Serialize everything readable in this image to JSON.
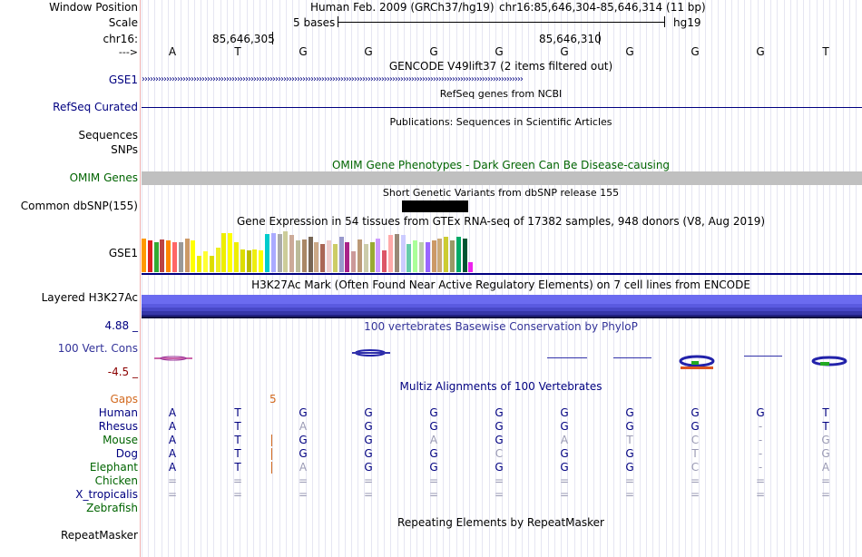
{
  "header": {
    "window_position_label": "Window Position",
    "scale_label": "Scale",
    "chrom_label": "chr16:",
    "arrow_label": "--->",
    "assembly_text": "Human Feb. 2009 (GRCh37/hg19)",
    "position_text": "chr16:85,646,304-85,646,314 (11 bp)",
    "scale_text": "5 bases",
    "scale_db": "hg19",
    "coord1": "85,646,305",
    "coord2": "85,646,310",
    "bases": [
      "A",
      "T",
      "G",
      "G",
      "G",
      "G",
      "G",
      "G",
      "G",
      "G",
      "T"
    ]
  },
  "tracks": {
    "gencode": {
      "title": "GENCODE V49lift37 (2 items filtered out)",
      "label": "GSE1"
    },
    "refseq": {
      "title": "RefSeq genes from NCBI",
      "label": "RefSeq Curated"
    },
    "publications": {
      "title": "Publications: Sequences in Scientific Articles",
      "label1": "Sequences",
      "label2": "SNPs"
    },
    "omim": {
      "title": "OMIM Gene Phenotypes - Dark Green Can Be Disease-causing",
      "label": "OMIM Genes"
    },
    "dbsnp": {
      "title": "Short Genetic Variants from dbSNP release 155",
      "label": "Common dbSNP(155)"
    },
    "gtex": {
      "title": "Gene Expression in 54 tissues from GTEx RNA-seq of 17382 samples, 948 donors (V8, Aug 2019)",
      "label": "GSE1"
    },
    "h3k27ac": {
      "title": "H3K27Ac Mark (Often Found Near Active Regulatory Elements) on 7 cell lines from ENCODE",
      "label": "Layered H3K27Ac"
    },
    "phylop": {
      "title": "100 vertebrates Basewise Conservation by PhyloP",
      "label": "100 Vert. Cons",
      "max": "4.88 _",
      "min": "-4.5 _"
    },
    "multiz": {
      "title": "Multiz Alignments of 100 Vertebrates",
      "gaps_label": "Gaps",
      "gap_value": "5"
    },
    "repeatmasker": {
      "title": "Repeating Elements by RepeatMasker",
      "label": "RepeatMasker"
    }
  },
  "alignment": {
    "species": [
      "Human",
      "Rhesus",
      "Mouse",
      "Dog",
      "Elephant",
      "Chicken",
      "X_tropicalis",
      "Zebrafish"
    ],
    "rows": [
      [
        "A",
        "T",
        "G",
        "G",
        "G",
        "G",
        "G",
        "G",
        "G",
        "G",
        "T"
      ],
      [
        "A",
        "T",
        "A",
        "G",
        "G",
        "G",
        "G",
        "G",
        "G",
        "-",
        "T"
      ],
      [
        "A",
        "T",
        "G",
        "G",
        "A",
        "G",
        "A",
        "T",
        "C",
        "-",
        "G"
      ],
      [
        "A",
        "T",
        "G",
        "G",
        "G",
        "C",
        "G",
        "G",
        "T",
        "-",
        "G"
      ],
      [
        "A",
        "T",
        "A",
        "G",
        "G",
        "G",
        "G",
        "G",
        "C",
        "-",
        "A"
      ],
      [
        "=",
        "=",
        "=",
        "=",
        "=",
        "=",
        "=",
        "=",
        "=",
        "=",
        "="
      ],
      [
        "=",
        "=",
        "=",
        "=",
        "=",
        "=",
        "=",
        "=",
        "=",
        "=",
        "="
      ],
      [
        "",
        "",
        "",
        "",
        "",
        "",
        "",
        "",
        "",
        "",
        ""
      ]
    ]
  },
  "gtex_values": [
    62,
    58,
    55,
    60,
    58,
    55,
    55,
    62,
    58,
    30,
    38,
    30,
    45,
    72,
    72,
    55,
    42,
    40,
    42,
    40,
    70,
    72,
    70,
    75,
    68,
    58,
    60,
    65,
    55,
    52,
    58,
    52,
    65,
    55,
    38,
    60,
    52,
    55,
    62,
    40,
    68,
    70,
    68,
    52,
    58,
    55,
    55,
    58,
    62,
    65,
    58,
    65,
    62,
    18
  ],
  "gtex_colors": [
    "#ff9900",
    "#dd2222",
    "#33aa33",
    "#bb4444",
    "#ff8800",
    "#ff6666",
    "#999999",
    "#cc9966",
    "#ffff00",
    "#eeee00",
    "#ffff33",
    "#dddd00",
    "#eeee22",
    "#eeee00",
    "#ffff00",
    "#eeee00",
    "#dddd00",
    "#bbbb00",
    "#eeee11",
    "#ffff00",
    "#00cccc",
    "#aaaaff",
    "#aaaaaa",
    "#cccc99",
    "#ccaa99",
    "#bbbb99",
    "#aa8866",
    "#776655",
    "#ccaa88",
    "#aa6655",
    "#eecccc",
    "#cccc66",
    "#9999cc",
    "#aa2288",
    "#cc9999",
    "#bb9977",
    "#ccccaa",
    "#99aa33",
    "#cc99ff",
    "#dd5566",
    "#ffaaaa",
    "#998877",
    "#ccccff",
    "#66ccaa",
    "#aaff99",
    "#bbccaa",
    "#9966ff",
    "#cc9966",
    "#ccaa77",
    "#cccc33",
    "#999966",
    "#00aa66",
    "#005533",
    "#ee22ee"
  ],
  "colors": {
    "track_label_blue": "#000080",
    "omim_green": "#006400",
    "gray_bar": "#c0c0c0",
    "h3k_band": "#6b6bf0"
  }
}
